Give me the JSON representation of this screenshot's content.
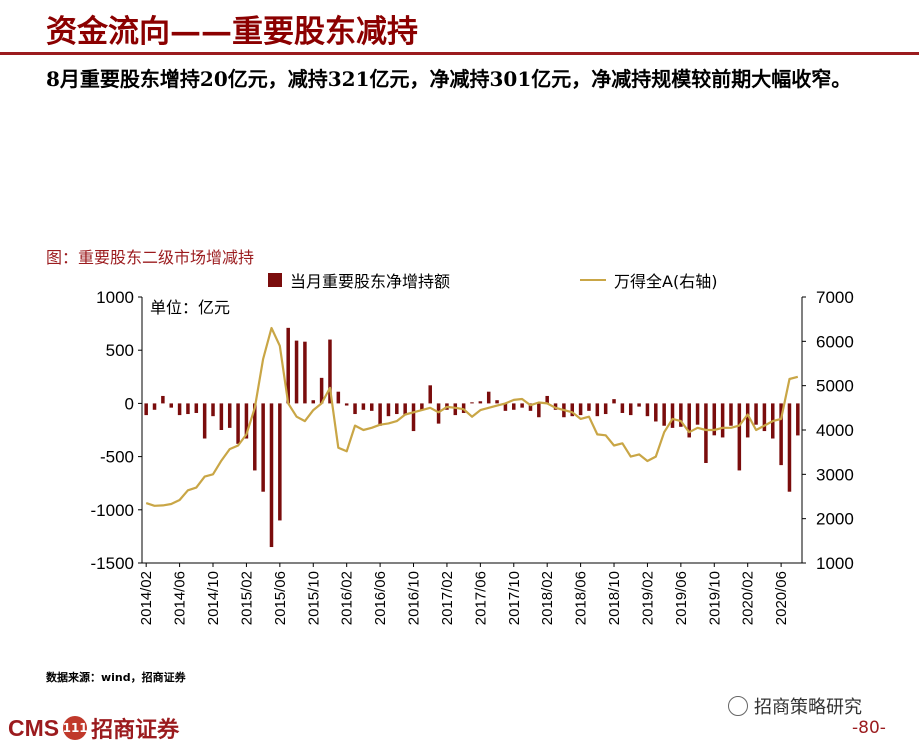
{
  "page": {
    "title": "资金流向——重要股东减持",
    "summary": "8月重要股东增持20亿元，减持321亿元，净减持301亿元，净减持规模较前期大幅收窄。",
    "source": "数据来源：wind，招商证券",
    "logo_cms": "CMS",
    "logo_mark": "111",
    "logo_name": "招商证券",
    "wechat": "招商策略研究",
    "page_number": "-80-"
  },
  "colors": {
    "brand": "#9B1B1E",
    "bar": "#7A0C0C",
    "line": "#C9A646"
  },
  "chart_data": {
    "type": "bar+line",
    "title": "图：重要股东二级市场增减持",
    "unit_label": "单位：亿元",
    "x_tick_labels": [
      "2014/02",
      "2014/06",
      "2014/10",
      "2015/02",
      "2015/06",
      "2015/10",
      "2016/02",
      "2016/06",
      "2016/10",
      "2017/02",
      "2017/06",
      "2017/10",
      "2018/02",
      "2018/06",
      "2018/10",
      "2019/02",
      "2019/06",
      "2019/10",
      "2020/02",
      "2020/06"
    ],
    "x": [
      "2014/02",
      "2014/03",
      "2014/04",
      "2014/05",
      "2014/06",
      "2014/07",
      "2014/08",
      "2014/09",
      "2014/10",
      "2014/11",
      "2014/12",
      "2015/01",
      "2015/02",
      "2015/03",
      "2015/04",
      "2015/05",
      "2015/06",
      "2015/07",
      "2015/08",
      "2015/09",
      "2015/10",
      "2015/11",
      "2015/12",
      "2016/01",
      "2016/02",
      "2016/03",
      "2016/04",
      "2016/05",
      "2016/06",
      "2016/07",
      "2016/08",
      "2016/09",
      "2016/10",
      "2016/11",
      "2016/12",
      "2017/01",
      "2017/02",
      "2017/03",
      "2017/04",
      "2017/05",
      "2017/06",
      "2017/07",
      "2017/08",
      "2017/09",
      "2017/10",
      "2017/11",
      "2017/12",
      "2018/01",
      "2018/02",
      "2018/03",
      "2018/04",
      "2018/05",
      "2018/06",
      "2018/07",
      "2018/08",
      "2018/09",
      "2018/10",
      "2018/11",
      "2018/12",
      "2019/01",
      "2019/02",
      "2019/03",
      "2019/04",
      "2019/05",
      "2019/06",
      "2019/07",
      "2019/08",
      "2019/09",
      "2019/10",
      "2019/11",
      "2019/12",
      "2020/01",
      "2020/02",
      "2020/03",
      "2020/04",
      "2020/05",
      "2020/06",
      "2020/07",
      "2020/08"
    ],
    "y_left": {
      "ticks": [
        1000,
        500,
        0,
        -500,
        -1000,
        -1500
      ],
      "range": [
        -1500,
        1000
      ]
    },
    "y_right": {
      "ticks": [
        7000,
        6000,
        5000,
        4000,
        3000,
        2000,
        1000
      ],
      "range": [
        1000,
        7000
      ]
    },
    "series": [
      {
        "name": "当月重要股东净增持额",
        "type": "bar",
        "axis": "left",
        "values": [
          -110,
          -60,
          70,
          -40,
          -110,
          -100,
          -90,
          -330,
          -120,
          -250,
          -230,
          -380,
          -330,
          -630,
          -830,
          -1350,
          -1100,
          710,
          590,
          580,
          30,
          240,
          600,
          110,
          -20,
          -100,
          -60,
          -70,
          -210,
          -120,
          -100,
          -110,
          -260,
          -60,
          170,
          -190,
          -60,
          -110,
          -90,
          10,
          20,
          110,
          30,
          -70,
          -60,
          -40,
          -70,
          -130,
          70,
          -60,
          -130,
          -120,
          -110,
          -70,
          -120,
          -100,
          40,
          -90,
          -110,
          -30,
          -120,
          -170,
          -210,
          -230,
          -220,
          -320,
          -200,
          -560,
          -300,
          -320,
          -210,
          -630,
          -320,
          -200,
          -260,
          -330,
          -580,
          -830,
          -301
        ]
      },
      {
        "name": "万得全A(右轴)",
        "type": "line",
        "axis": "right",
        "values": [
          2350,
          2290,
          2300,
          2330,
          2420,
          2640,
          2700,
          2950,
          3000,
          3310,
          3570,
          3650,
          3900,
          4500,
          5600,
          6300,
          5900,
          4600,
          4300,
          4200,
          4450,
          4600,
          4950,
          3600,
          3520,
          4100,
          4000,
          4050,
          4120,
          4150,
          4200,
          4350,
          4400,
          4450,
          4500,
          4400,
          4520,
          4500,
          4470,
          4300,
          4450,
          4500,
          4550,
          4600,
          4680,
          4700,
          4560,
          4620,
          4600,
          4500,
          4450,
          4400,
          4250,
          4300,
          3900,
          3880,
          3650,
          3700,
          3400,
          3450,
          3300,
          3400,
          3950,
          4250,
          4200,
          3950,
          4050,
          4000,
          4000,
          4050,
          4050,
          4100,
          4350,
          4000,
          4100,
          4200,
          4250,
          5150,
          5200
        ]
      }
    ]
  }
}
